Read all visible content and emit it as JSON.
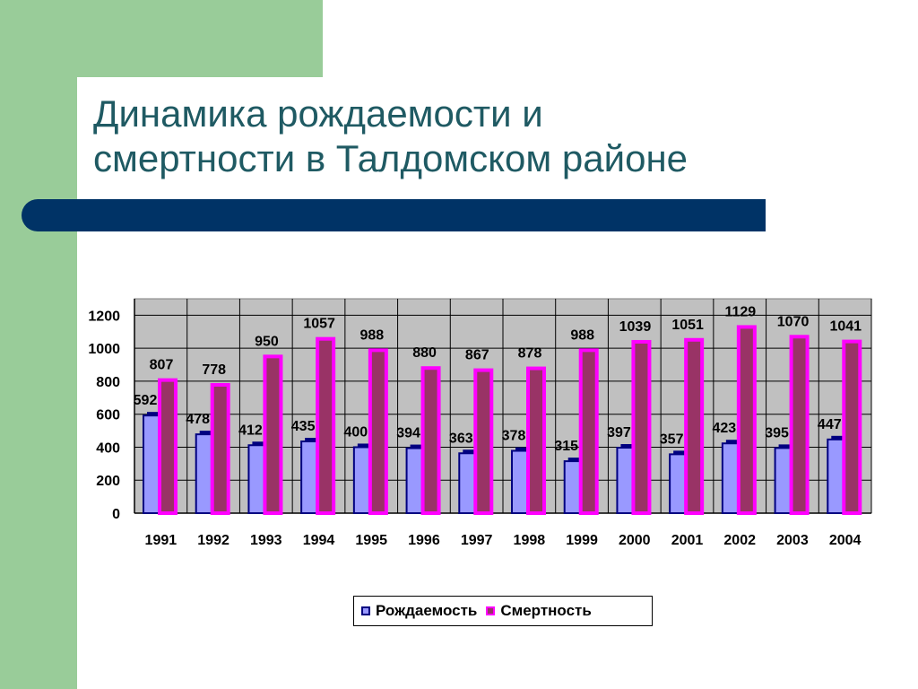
{
  "slide": {
    "title_line1": "Динамика рождаемости и",
    "title_line2": "смертности в Талдомском районе",
    "colors": {
      "green": "#99cc99",
      "title_text": "#1f5a63",
      "title_bar": "#003366"
    }
  },
  "chart_data": {
    "type": "bar",
    "categories": [
      "1991",
      "1992",
      "1993",
      "1994",
      "1995",
      "1996",
      "1997",
      "1998",
      "1999",
      "2000",
      "2001",
      "2002",
      "2003",
      "2004"
    ],
    "series": [
      {
        "name": "Рождаемость",
        "values": [
          592,
          478,
          412,
          435,
          400,
          394,
          363,
          378,
          315,
          397,
          357,
          423,
          395,
          447
        ],
        "color": "#9999ff",
        "edge_color": "#000080"
      },
      {
        "name": "Смертность",
        "values": [
          807,
          778,
          950,
          1057,
          988,
          880,
          867,
          878,
          988,
          1039,
          1051,
          1129,
          1070,
          1041
        ],
        "color": "#993366",
        "edge_color": "#ff00ff"
      }
    ],
    "yticks": [
      "0",
      "200",
      "400",
      "600",
      "800",
      "1000",
      "1200"
    ],
    "ylim": [
      0,
      1300
    ],
    "grid": true,
    "plot_background": "#c0c0c0",
    "legend_position": "bottom",
    "data_labels": true
  }
}
